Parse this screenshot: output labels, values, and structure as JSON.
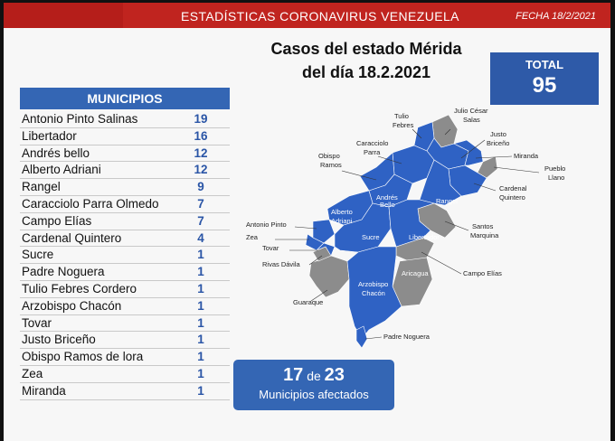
{
  "banner": {
    "title": "ESTADÍSTICAS CORONAVIRUS VENEZUELA",
    "date": "FECHA 18/2/2021"
  },
  "headline": {
    "line1": "Casos del estado Mérida",
    "line2": "del día 18.2.2021"
  },
  "total": {
    "label": "TOTAL",
    "value": "95"
  },
  "municipios": {
    "header": "MUNICIPIOS",
    "rows": [
      {
        "name": "Antonio Pinto Salinas",
        "count": "19"
      },
      {
        "name": "Libertador",
        "count": "16"
      },
      {
        "name": "Andrés bello",
        "count": "12"
      },
      {
        "name": "Alberto Adriani",
        "count": "12"
      },
      {
        "name": "Rangel",
        "count": "9"
      },
      {
        "name": "Caracciolo Parra Olmedo",
        "count": "7"
      },
      {
        "name": "Campo Elías",
        "count": "7"
      },
      {
        "name": "Cardenal Quintero",
        "count": "4"
      },
      {
        "name": "Sucre",
        "count": "1"
      },
      {
        "name": "Padre Noguera",
        "count": "1"
      },
      {
        "name": "Tulio Febres Cordero",
        "count": "1"
      },
      {
        "name": "Arzobispo Chacón",
        "count": "1"
      },
      {
        "name": "Tovar",
        "count": "1"
      },
      {
        "name": "Justo Briceño",
        "count": "1"
      },
      {
        "name": "Obispo Ramos de lora",
        "count": "1"
      },
      {
        "name": "Zea",
        "count": "1"
      },
      {
        "name": "Miranda",
        "count": "1"
      }
    ]
  },
  "affected": {
    "count": "17",
    "of": "de",
    "total": "23",
    "label": "Municipios afectados"
  },
  "map": {
    "affected_color": "#2f62c4",
    "unaffected_color": "#8c8c8c",
    "labels": {
      "tulio": [
        "Tulio",
        "Febres"
      ],
      "julio": [
        "Julio César",
        "Salas"
      ],
      "justo": [
        "Justo",
        "Briceño"
      ],
      "caracciolo": [
        "Caracciolo",
        "Parra"
      ],
      "obispo": [
        "Obispo",
        "Ramos"
      ],
      "miranda": "Miranda",
      "pueblo": [
        "Pueblo",
        "Llano"
      ],
      "cardenal": [
        "Cardenal",
        "Quintero"
      ],
      "rangel": "Rangel",
      "andres": [
        "Andrés",
        "Bello"
      ],
      "alberto": [
        "Alberto",
        "Adriani"
      ],
      "antonio": "Antonio Pinto",
      "zea": "Zea",
      "tovar": "Tovar",
      "rivas": "Rivas Dávila",
      "sucre": "Sucre",
      "libertador": "Libertador",
      "santos": [
        "Santos",
        "Marquina"
      ],
      "campo": "Campo Elías",
      "aricagua": "Aricagua",
      "guaraque": "Guaraque",
      "arzobispo": [
        "Arzobispo",
        "Chacón"
      ],
      "padre": "Padre Noguera"
    }
  }
}
